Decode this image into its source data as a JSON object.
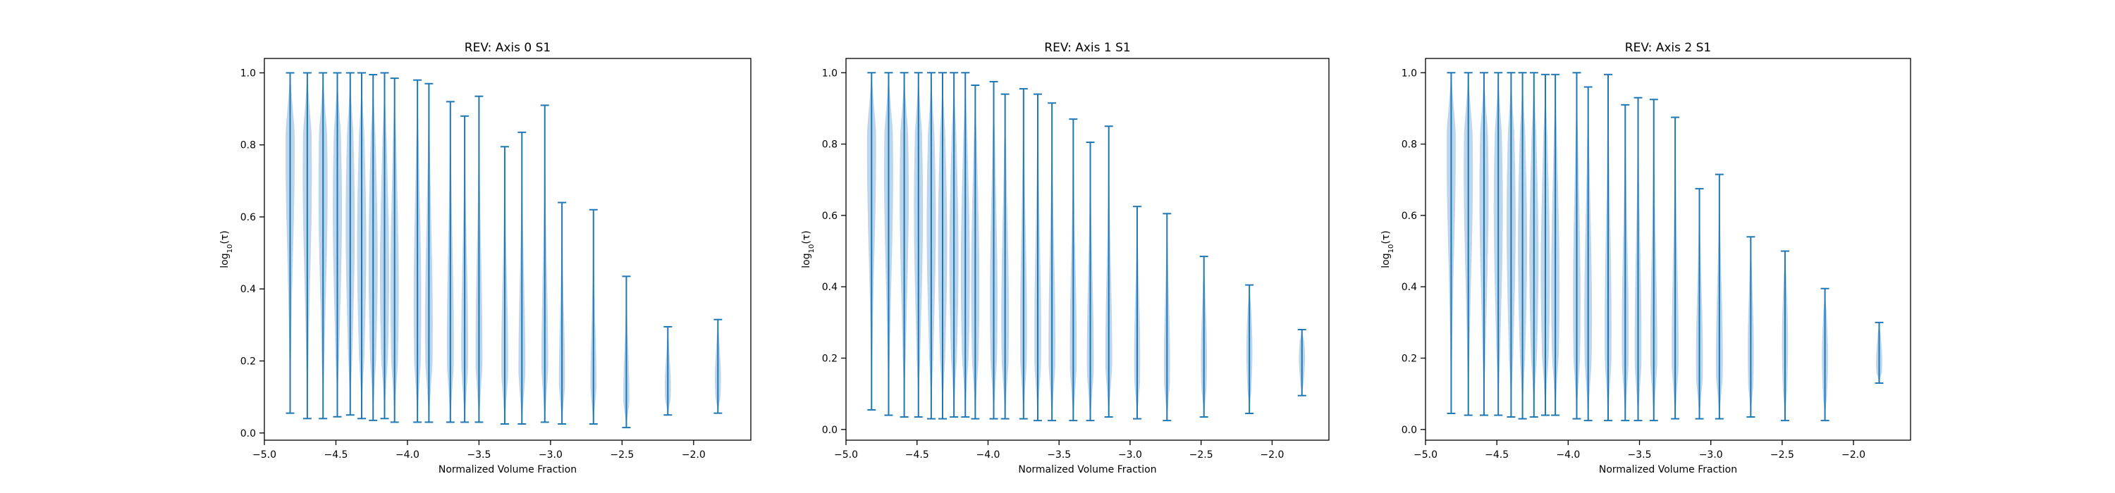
{
  "chart_data": [
    {
      "type": "violin",
      "title": "REV: Axis 0 S1",
      "xlabel": "Normalized Volume Fraction",
      "ylabel_prefix": "log",
      "ylabel_sub": "10",
      "ylabel_suffix": "(τ)",
      "xlim": [
        -5.0,
        -1.6
      ],
      "ylim": [
        -0.02,
        1.04
      ],
      "xticks": [
        -5.0,
        -4.5,
        -4.0,
        -3.5,
        -3.0,
        -2.5,
        -2.0
      ],
      "xtick_labels": [
        "−5.0",
        "−4.5",
        "−4.0",
        "−3.5",
        "−3.0",
        "−2.5",
        "−2.0"
      ],
      "yticks": [
        0.0,
        0.2,
        0.4,
        0.6,
        0.8,
        1.0
      ],
      "ytick_labels": [
        "0.0",
        "0.2",
        "0.4",
        "0.6",
        "0.8",
        "1.0"
      ],
      "color": "#1f77b4",
      "fill": "#a7c8e4",
      "violins": [
        {
          "x": -4.82,
          "min": 0.055,
          "max": 1.0,
          "peak": 0.78,
          "width": 0.6
        },
        {
          "x": -4.7,
          "min": 0.04,
          "max": 1.0,
          "peak": 0.72,
          "width": 0.6
        },
        {
          "x": -4.59,
          "min": 0.04,
          "max": 1.0,
          "peak": 0.68,
          "width": 0.6
        },
        {
          "x": -4.49,
          "min": 0.045,
          "max": 1.0,
          "peak": 0.62,
          "width": 0.6
        },
        {
          "x": -4.4,
          "min": 0.05,
          "max": 1.0,
          "peak": 0.58,
          "width": 0.6
        },
        {
          "x": -4.32,
          "min": 0.04,
          "max": 1.0,
          "peak": 0.52,
          "width": 0.6
        },
        {
          "x": -4.24,
          "min": 0.035,
          "max": 0.995,
          "peak": 0.48,
          "width": 0.6
        },
        {
          "x": -4.16,
          "min": 0.04,
          "max": 1.0,
          "peak": 0.44,
          "width": 0.6
        },
        {
          "x": -4.09,
          "min": 0.03,
          "max": 0.985,
          "peak": 0.4,
          "width": 0.55
        },
        {
          "x": -3.93,
          "min": 0.03,
          "max": 0.98,
          "peak": 0.36,
          "width": 0.5
        },
        {
          "x": -3.85,
          "min": 0.03,
          "max": 0.97,
          "peak": 0.3,
          "width": 0.5
        },
        {
          "x": -3.7,
          "min": 0.03,
          "max": 0.92,
          "peak": 0.26,
          "width": 0.45
        },
        {
          "x": -3.6,
          "min": 0.03,
          "max": 0.88,
          "peak": 0.24,
          "width": 0.45
        },
        {
          "x": -3.5,
          "min": 0.03,
          "max": 0.935,
          "peak": 0.22,
          "width": 0.45
        },
        {
          "x": -3.32,
          "min": 0.025,
          "max": 0.795,
          "peak": 0.2,
          "width": 0.45
        },
        {
          "x": -3.2,
          "min": 0.025,
          "max": 0.835,
          "peak": 0.18,
          "width": 0.45
        },
        {
          "x": -3.04,
          "min": 0.03,
          "max": 0.91,
          "peak": 0.17,
          "width": 0.45
        },
        {
          "x": -2.92,
          "min": 0.025,
          "max": 0.64,
          "peak": 0.15,
          "width": 0.4
        },
        {
          "x": -2.7,
          "min": 0.025,
          "max": 0.62,
          "peak": 0.12,
          "width": 0.4
        },
        {
          "x": -2.47,
          "min": 0.015,
          "max": 0.435,
          "peak": 0.1,
          "width": 0.4
        },
        {
          "x": -2.18,
          "min": 0.05,
          "max": 0.295,
          "peak": 0.13,
          "width": 0.4
        },
        {
          "x": -1.83,
          "min": 0.055,
          "max": 0.315,
          "peak": 0.15,
          "width": 0.4
        }
      ]
    },
    {
      "type": "violin",
      "title": "REV: Axis 1 S1",
      "xlabel": "Normalized Volume Fraction",
      "ylabel_prefix": "log",
      "ylabel_sub": "10",
      "ylabel_suffix": "(τ)",
      "xlim": [
        -5.0,
        -1.6
      ],
      "ylim": [
        -0.03,
        1.04
      ],
      "xticks": [
        -5.0,
        -4.5,
        -4.0,
        -3.5,
        -3.0,
        -2.5,
        -2.0
      ],
      "xtick_labels": [
        "−5.0",
        "−4.5",
        "−4.0",
        "−3.5",
        "−3.0",
        "−2.5",
        "−2.0"
      ],
      "yticks": [
        0.0,
        0.2,
        0.4,
        0.6,
        0.8,
        1.0
      ],
      "ytick_labels": [
        "0.0",
        "0.2",
        "0.4",
        "0.6",
        "0.8",
        "1.0"
      ],
      "color": "#1f77b4",
      "fill": "#a7c8e4",
      "violins": [
        {
          "x": -4.82,
          "min": 0.055,
          "max": 1.0,
          "peak": 0.78,
          "width": 0.6
        },
        {
          "x": -4.7,
          "min": 0.04,
          "max": 1.0,
          "peak": 0.72,
          "width": 0.6
        },
        {
          "x": -4.59,
          "min": 0.035,
          "max": 1.0,
          "peak": 0.66,
          "width": 0.6
        },
        {
          "x": -4.49,
          "min": 0.035,
          "max": 1.0,
          "peak": 0.62,
          "width": 0.6
        },
        {
          "x": -4.4,
          "min": 0.03,
          "max": 1.0,
          "peak": 0.58,
          "width": 0.6
        },
        {
          "x": -4.32,
          "min": 0.03,
          "max": 1.0,
          "peak": 0.52,
          "width": 0.6
        },
        {
          "x": -4.24,
          "min": 0.035,
          "max": 1.0,
          "peak": 0.48,
          "width": 0.6
        },
        {
          "x": -4.16,
          "min": 0.035,
          "max": 1.0,
          "peak": 0.44,
          "width": 0.6
        },
        {
          "x": -4.09,
          "min": 0.03,
          "max": 0.965,
          "peak": 0.4,
          "width": 0.55
        },
        {
          "x": -3.96,
          "min": 0.03,
          "max": 0.975,
          "peak": 0.36,
          "width": 0.5
        },
        {
          "x": -3.88,
          "min": 0.03,
          "max": 0.94,
          "peak": 0.32,
          "width": 0.5
        },
        {
          "x": -3.75,
          "min": 0.03,
          "max": 0.955,
          "peak": 0.28,
          "width": 0.45
        },
        {
          "x": -3.65,
          "min": 0.025,
          "max": 0.94,
          "peak": 0.26,
          "width": 0.45
        },
        {
          "x": -3.55,
          "min": 0.025,
          "max": 0.915,
          "peak": 0.24,
          "width": 0.45
        },
        {
          "x": -3.4,
          "min": 0.025,
          "max": 0.87,
          "peak": 0.22,
          "width": 0.45
        },
        {
          "x": -3.28,
          "min": 0.025,
          "max": 0.805,
          "peak": 0.2,
          "width": 0.45
        },
        {
          "x": -3.15,
          "min": 0.035,
          "max": 0.85,
          "peak": 0.2,
          "width": 0.45
        },
        {
          "x": -2.95,
          "min": 0.03,
          "max": 0.625,
          "peak": 0.2,
          "width": 0.4
        },
        {
          "x": -2.74,
          "min": 0.025,
          "max": 0.605,
          "peak": 0.19,
          "width": 0.4
        },
        {
          "x": -2.48,
          "min": 0.035,
          "max": 0.485,
          "peak": 0.2,
          "width": 0.4
        },
        {
          "x": -2.16,
          "min": 0.045,
          "max": 0.405,
          "peak": 0.22,
          "width": 0.4
        },
        {
          "x": -1.79,
          "min": 0.095,
          "max": 0.28,
          "peak": 0.2,
          "width": 0.4
        }
      ]
    },
    {
      "type": "violin",
      "title": "REV: Axis 2 S1",
      "xlabel": "Normalized Volume Fraction",
      "ylabel_prefix": "log",
      "ylabel_sub": "10",
      "ylabel_suffix": "(τ)",
      "xlim": [
        -5.0,
        -1.6
      ],
      "ylim": [
        -0.03,
        1.04
      ],
      "xticks": [
        -5.0,
        -4.5,
        -4.0,
        -3.5,
        -3.0,
        -2.5,
        -2.0
      ],
      "xtick_labels": [
        "−5.0",
        "−4.5",
        "−4.0",
        "−3.5",
        "−3.0",
        "−2.5",
        "−2.0"
      ],
      "yticks": [
        0.0,
        0.2,
        0.4,
        0.6,
        0.8,
        1.0
      ],
      "ytick_labels": [
        "0.0",
        "0.2",
        "0.4",
        "0.6",
        "0.8",
        "1.0"
      ],
      "color": "#1f77b4",
      "fill": "#a7c8e4",
      "violins": [
        {
          "x": -4.82,
          "min": 0.045,
          "max": 1.0,
          "peak": 0.78,
          "width": 0.6
        },
        {
          "x": -4.7,
          "min": 0.04,
          "max": 1.0,
          "peak": 0.72,
          "width": 0.6
        },
        {
          "x": -4.59,
          "min": 0.04,
          "max": 1.0,
          "peak": 0.66,
          "width": 0.6
        },
        {
          "x": -4.49,
          "min": 0.04,
          "max": 1.0,
          "peak": 0.62,
          "width": 0.6
        },
        {
          "x": -4.4,
          "min": 0.035,
          "max": 1.0,
          "peak": 0.58,
          "width": 0.6
        },
        {
          "x": -4.32,
          "min": 0.03,
          "max": 1.0,
          "peak": 0.52,
          "width": 0.6
        },
        {
          "x": -4.24,
          "min": 0.035,
          "max": 1.0,
          "peak": 0.48,
          "width": 0.6
        },
        {
          "x": -4.16,
          "min": 0.04,
          "max": 0.995,
          "peak": 0.44,
          "width": 0.6
        },
        {
          "x": -4.09,
          "min": 0.04,
          "max": 0.995,
          "peak": 0.4,
          "width": 0.55
        },
        {
          "x": -3.94,
          "min": 0.03,
          "max": 1.0,
          "peak": 0.36,
          "width": 0.5
        },
        {
          "x": -3.86,
          "min": 0.025,
          "max": 0.96,
          "peak": 0.32,
          "width": 0.5
        },
        {
          "x": -3.72,
          "min": 0.025,
          "max": 0.995,
          "peak": 0.28,
          "width": 0.45
        },
        {
          "x": -3.6,
          "min": 0.025,
          "max": 0.91,
          "peak": 0.26,
          "width": 0.45
        },
        {
          "x": -3.51,
          "min": 0.025,
          "max": 0.93,
          "peak": 0.24,
          "width": 0.45
        },
        {
          "x": -3.4,
          "min": 0.025,
          "max": 0.925,
          "peak": 0.22,
          "width": 0.45
        },
        {
          "x": -3.25,
          "min": 0.03,
          "max": 0.875,
          "peak": 0.22,
          "width": 0.45
        },
        {
          "x": -3.08,
          "min": 0.03,
          "max": 0.675,
          "peak": 0.2,
          "width": 0.45
        },
        {
          "x": -2.94,
          "min": 0.03,
          "max": 0.715,
          "peak": 0.2,
          "width": 0.45
        },
        {
          "x": -2.72,
          "min": 0.035,
          "max": 0.54,
          "peak": 0.22,
          "width": 0.4
        },
        {
          "x": -2.48,
          "min": 0.025,
          "max": 0.5,
          "peak": 0.24,
          "width": 0.4
        },
        {
          "x": -2.2,
          "min": 0.025,
          "max": 0.395,
          "peak": 0.2,
          "width": 0.4
        },
        {
          "x": -1.82,
          "min": 0.13,
          "max": 0.3,
          "peak": 0.19,
          "width": 0.4
        }
      ]
    }
  ]
}
